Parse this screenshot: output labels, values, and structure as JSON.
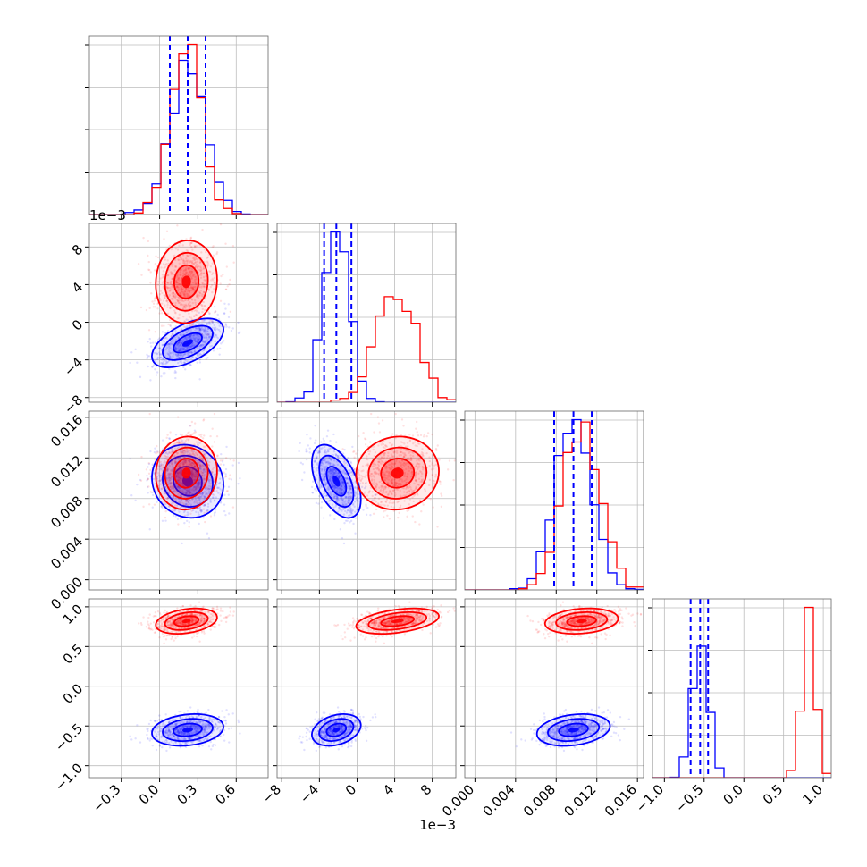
{
  "chart_data": {
    "type": "corner",
    "series": [
      {
        "name": "",
        "color": "#0000ff",
        "means": [
          0.22,
          -0.0022,
          0.0097,
          -0.55
        ],
        "sds": [
          0.14,
          0.0013,
          0.0018,
          0.1
        ],
        "corr": {
          "0-1": 0.55,
          "0-2": -0.1,
          "0-3": 0.2,
          "1-2": -0.5,
          "1-3": 0.3,
          "2-3": 0.25
        },
        "quantiles_16_50_84": [
          [
            0.08,
            0.22,
            0.36
          ],
          [
            -0.0035,
            -0.0022,
            -0.0006
          ],
          [
            0.0078,
            0.0097,
            0.0115
          ],
          [
            -0.67,
            -0.55,
            -0.45
          ]
        ],
        "quantile_line_style": "dashed"
      },
      {
        "name": "",
        "color": "#ff0000",
        "means": [
          0.21,
          0.0043,
          0.0105,
          0.82
        ],
        "sds": [
          0.12,
          0.0022,
          0.0018,
          0.08
        ],
        "corr": {
          "0-1": 0.05,
          "0-2": 0.05,
          "0-3": 0.3,
          "1-2": 0.05,
          "1-3": 0.4,
          "2-3": 0.2
        }
      }
    ],
    "panels": [
      {
        "xlim": [
          -0.55,
          0.85
        ],
        "xticks": [
          "−0.3",
          "0.0",
          "0.3",
          "0.6"
        ],
        "xtick_values": [
          -0.3,
          0.0,
          0.3,
          0.6
        ]
      },
      {
        "xlim": [
          -0.0085,
          0.0105
        ],
        "xticks": [
          "−8",
          "−4",
          "0",
          "4",
          "8"
        ],
        "xtick_values": [
          -0.008,
          -0.004,
          0,
          0.004,
          0.008
        ],
        "offset_label": "1e−3"
      },
      {
        "xlim": [
          -0.001,
          0.0166
        ],
        "xticks": [
          "0.000",
          "0.004",
          "0.008",
          "0.012",
          "0.016"
        ],
        "xtick_values": [
          0.0,
          0.004,
          0.008,
          0.012,
          0.016
        ]
      },
      {
        "xlim": [
          -1.15,
          1.1
        ],
        "xticks": [
          "−1.0",
          "−0.5",
          "0.0",
          "0.5",
          "1.0"
        ],
        "xtick_values": [
          -1.0,
          -0.5,
          0.0,
          0.5,
          1.0
        ]
      }
    ],
    "contour_levels": 3,
    "grid": true,
    "xlabel": "",
    "ylabel": ""
  }
}
